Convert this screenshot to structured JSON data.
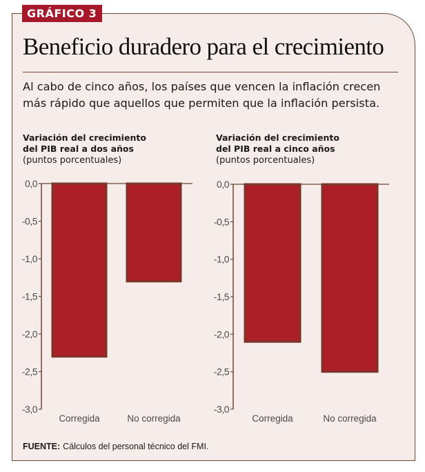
{
  "badge": "GRÁFICO 3",
  "title": "Beneficio duradero para el crecimiento",
  "subtitle": "Al cabo de cinco años, los países que vencen la inflación crecen más rápido que aquellos que permiten que la inflación persista.",
  "source": {
    "label": "FUENTE:",
    "text": "Cálculos del personal técnico del FMI."
  },
  "colors": {
    "bar_fill": "#ad1f27",
    "bar_outline": "#7a3528",
    "axis": "#6e4433",
    "badge": "#a8182b",
    "background": "#f6ecea"
  },
  "chart_data": [
    {
      "type": "bar",
      "title": "Variación del crecimiento del PIB real a dos años",
      "units": "(puntos porcentuales)",
      "categories": [
        "Corregida",
        "No corregida"
      ],
      "values": [
        -2.3,
        -1.3
      ],
      "ylim": [
        -3.0,
        0.0
      ],
      "yticks": [
        0.0,
        -0.5,
        -1.0,
        -1.5,
        -2.0,
        -2.5,
        -3.0
      ],
      "ytick_labels": [
        "0,0",
        "-0,5",
        "-1,0",
        "-1,5",
        "-2,0",
        "-2,5",
        "-3,0"
      ],
      "xlabel": "",
      "ylabel": "",
      "grid": false,
      "legend": "none"
    },
    {
      "type": "bar",
      "title": "Variación del crecimiento del PIB real a cinco años",
      "units": "(puntos porcentuales)",
      "categories": [
        "Corregida",
        "No corregida"
      ],
      "values": [
        -2.1,
        -2.5
      ],
      "ylim": [
        -3.0,
        0.0
      ],
      "yticks": [
        0.0,
        -0.5,
        -1.0,
        -1.5,
        -2.0,
        -2.5,
        -3.0
      ],
      "ytick_labels": [
        "0,0",
        "-0,5",
        "-1,0",
        "-1,5",
        "-2,0",
        "-2,5",
        "-3,0"
      ],
      "xlabel": "",
      "ylabel": "",
      "grid": false,
      "legend": "none"
    }
  ],
  "chart_headings": [
    {
      "line1": "Variación del crecimiento",
      "line2": "del PIB real a dos años",
      "units": "(puntos porcentuales)"
    },
    {
      "line1": "Variación del crecimiento",
      "line2": "del PIB real a cinco años",
      "units": "(puntos porcentuales)"
    }
  ]
}
